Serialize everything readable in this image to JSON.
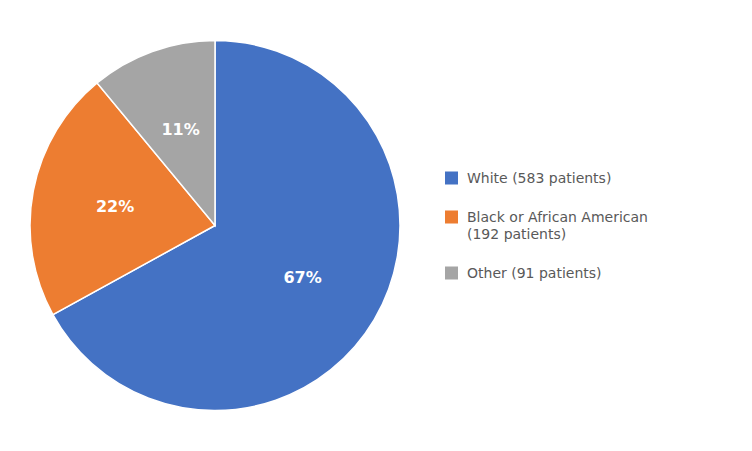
{
  "chart_data": {
    "type": "pie",
    "categories": [
      "White (583 patients)",
      "Black or African American\n(192 patients)",
      "Other (91 patients)"
    ],
    "values": [
      67,
      22,
      11
    ],
    "value_labels": [
      "67%",
      "22%",
      "11%"
    ],
    "colors": [
      "#4472C4",
      "#ED7D31",
      "#A5A5A5"
    ],
    "data_labels": true,
    "legend": "right"
  }
}
